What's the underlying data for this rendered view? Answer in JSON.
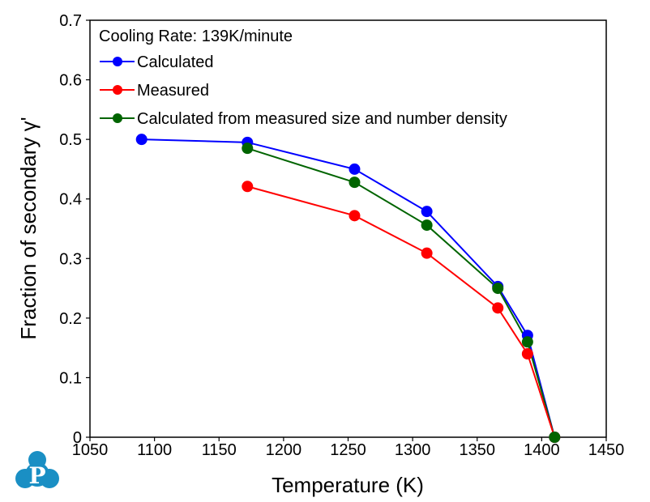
{
  "chart_data": {
    "type": "line",
    "title": "",
    "annotation": "Cooling Rate: 139K/minute",
    "xlabel": "Temperature (K)",
    "ylabel": "Fraction of secondary γ'",
    "xlim": [
      1050,
      1450
    ],
    "ylim": [
      0,
      0.7
    ],
    "xticks": [
      "1050",
      "1100",
      "1150",
      "1200",
      "1250",
      "1300",
      "1350",
      "1400",
      "1450"
    ],
    "yticks": [
      "0",
      "0.1",
      "0.2",
      "0.3",
      "0.4",
      "0.5",
      "0.6",
      "0.7"
    ],
    "grid": false,
    "legend_position": "top-left",
    "series": [
      {
        "name": "Calculated",
        "color": "#0000ff",
        "x": [
          1090,
          1172,
          1255,
          1311,
          1366,
          1389,
          1410
        ],
        "y": [
          0.5,
          0.495,
          0.45,
          0.379,
          0.253,
          0.171,
          0.0
        ]
      },
      {
        "name": "Measured",
        "color": "#ff0000",
        "x": [
          1172,
          1255,
          1311,
          1366,
          1389,
          1410
        ],
        "y": [
          0.421,
          0.372,
          0.309,
          0.217,
          0.14,
          0.0
        ]
      },
      {
        "name": "Calculated from measured size and number density",
        "color": "#006400",
        "x": [
          1172,
          1255,
          1311,
          1366,
          1389,
          1410
        ],
        "y": [
          0.485,
          0.428,
          0.356,
          0.25,
          0.16,
          0.0
        ]
      }
    ]
  },
  "logo": {
    "letter": "P",
    "color": "#1a8fc4"
  }
}
